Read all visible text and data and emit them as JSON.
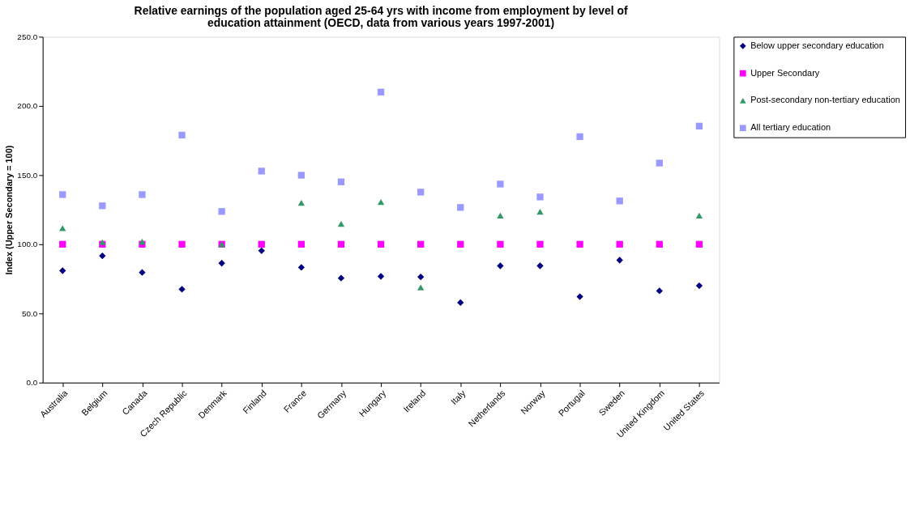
{
  "chart_data": {
    "type": "scatter",
    "title": "Relative earnings of the population aged 25-64 yrs with income from employment by level of education attainment (OECD, data from various years 1997-2001)",
    "ylabel": "Index (Upper Secondary = 100)",
    "categories": [
      "Australia",
      "Belgium",
      "Canada",
      "Czech Republic",
      "Denmark",
      "Finland",
      "France",
      "Germany",
      "Hungary",
      "Ireland",
      "Italy",
      "Netherlands",
      "Norway",
      "Portugal",
      "Sweden",
      "United Kingdom",
      "United States"
    ],
    "series": [
      {
        "name": "Below upper secondary education",
        "color": "#000080",
        "marker": "diamond",
        "values": [
          80.9,
          91.6,
          79.6,
          67.5,
          86.3,
          95.3,
          83.3,
          75.5,
          76.8,
          76.4,
          57.8,
          84.4,
          84.4,
          62.1,
          88.5,
          66.3,
          70.0
        ]
      },
      {
        "name": "Upper Secondary",
        "color": "#ff00ff",
        "marker": "square",
        "values": [
          100,
          100,
          100,
          100,
          100,
          100,
          100,
          100,
          100,
          100,
          100,
          100,
          100,
          100,
          100,
          100,
          100
        ]
      },
      {
        "name": "Post-secondary non-tertiary education",
        "color": "#339966",
        "marker": "triangle",
        "values": [
          111.7,
          101.5,
          101.9,
          null,
          100.0,
          null,
          129.9,
          114.8,
          130.5,
          68.8,
          null,
          120.8,
          123.5,
          null,
          null,
          null,
          120.8
        ]
      },
      {
        "name": "All tertiary education",
        "color": "#9999ff",
        "marker": "square",
        "values": [
          135.9,
          127.8,
          135.9,
          178.9,
          123.7,
          152.9,
          149.9,
          145.1,
          210.0,
          137.7,
          126.6,
          143.5,
          134.2,
          177.8,
          131.3,
          158.7,
          185.4
        ]
      }
    ],
    "ylim": [
      0,
      250
    ],
    "yticks": [
      {
        "value": 0,
        "label": "0.0"
      },
      {
        "value": 50,
        "label": "50.0"
      },
      {
        "value": 100,
        "label": "100.0"
      },
      {
        "value": 150,
        "label": "150.0"
      },
      {
        "value": 200,
        "label": "200.0"
      },
      {
        "value": 250,
        "label": "250.0"
      }
    ],
    "grid": false,
    "legend": "right"
  }
}
